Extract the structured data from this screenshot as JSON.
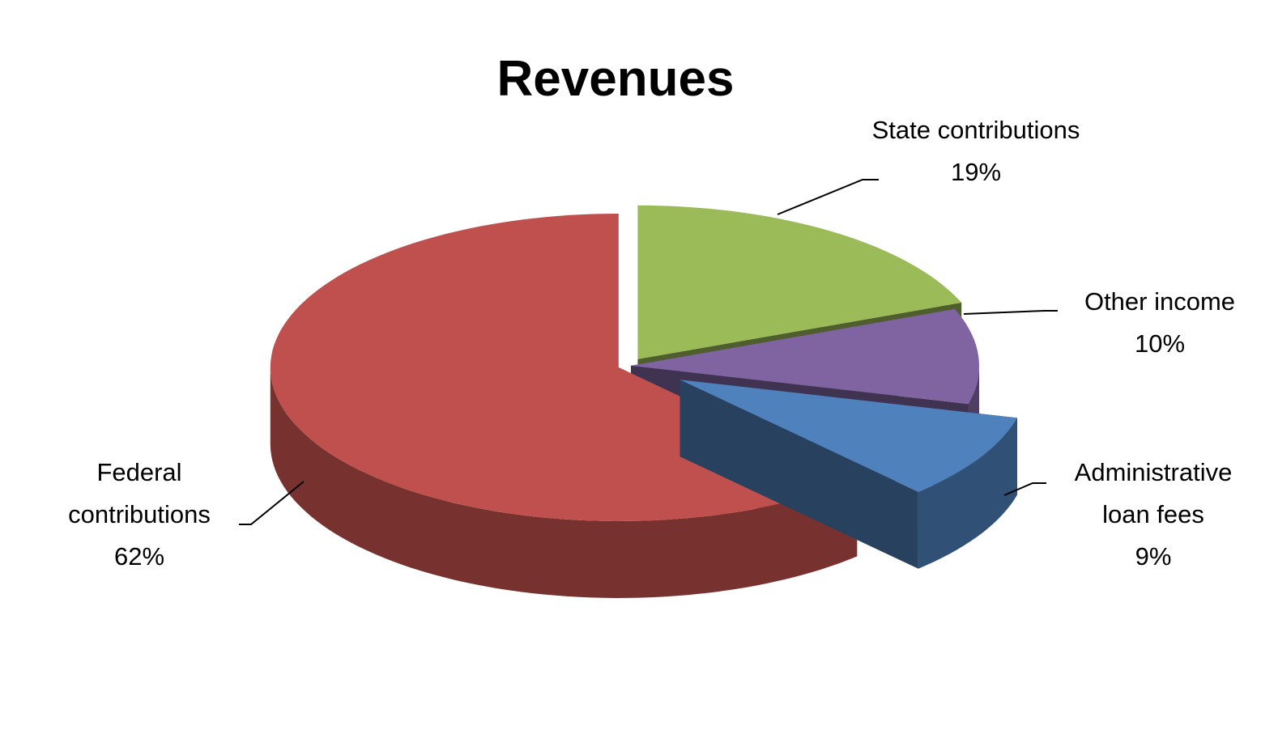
{
  "chart_data": {
    "type": "pie",
    "title": "Revenues",
    "categories": [
      "State contributions",
      "Other income",
      "Administrative loan fees",
      "Federal contributions"
    ],
    "values": [
      19,
      10,
      9,
      62
    ],
    "value_labels": [
      "19%",
      "10%",
      "9%",
      "62%"
    ],
    "colors": [
      "#9bbb59",
      "#8064a2",
      "#4f81bd",
      "#c0504d"
    ]
  }
}
